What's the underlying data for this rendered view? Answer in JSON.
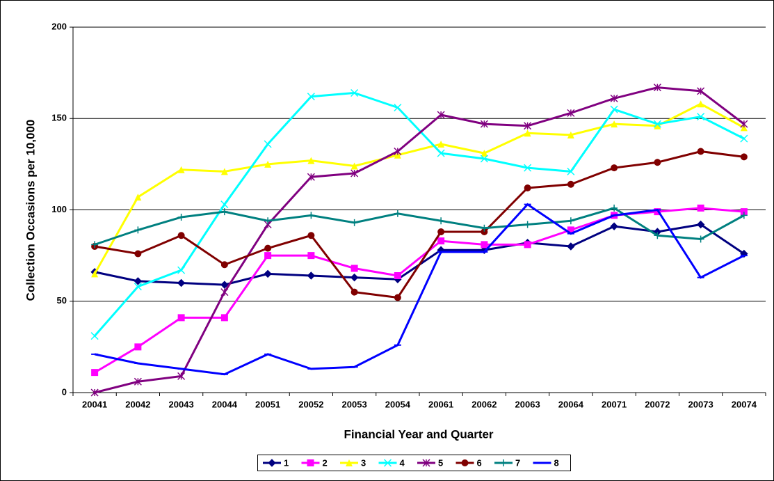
{
  "chart_data": {
    "type": "line",
    "x_label": "Financial Year and Quarter",
    "y_label": "Collection Occasions per 10,000",
    "categories": [
      "20041",
      "20042",
      "20043",
      "20044",
      "20051",
      "20052",
      "20053",
      "20054",
      "20061",
      "20062",
      "20063",
      "20064",
      "20071",
      "20072",
      "20073",
      "20074"
    ],
    "ylim": [
      0,
      200
    ],
    "yticks": [
      0,
      50,
      100,
      150,
      200
    ],
    "grid": true,
    "legend": "bottom",
    "series": [
      {
        "name": "1",
        "color": "#000080",
        "marker": "diamond",
        "values": [
          66,
          61,
          60,
          59,
          65,
          64,
          63,
          62,
          78,
          78,
          82,
          80,
          91,
          88,
          92,
          76
        ]
      },
      {
        "name": "2",
        "color": "#ff00ff",
        "marker": "square",
        "values": [
          11,
          25,
          41,
          41,
          75,
          75,
          68,
          64,
          83,
          81,
          81,
          89,
          97,
          99,
          101,
          99
        ]
      },
      {
        "name": "3",
        "color": "#ffff00",
        "marker": "triangle",
        "values": [
          65,
          107,
          122,
          121,
          125,
          127,
          124,
          130,
          136,
          131,
          142,
          141,
          147,
          146,
          158,
          145
        ]
      },
      {
        "name": "4",
        "color": "#00ffff",
        "marker": "x",
        "values": [
          31,
          58,
          67,
          103,
          136,
          162,
          164,
          156,
          131,
          128,
          123,
          121,
          155,
          147,
          151,
          139
        ]
      },
      {
        "name": "5",
        "color": "#800080",
        "marker": "star",
        "values": [
          0,
          6,
          9,
          55,
          92,
          118,
          120,
          132,
          152,
          147,
          146,
          153,
          161,
          167,
          165,
          147
        ]
      },
      {
        "name": "6",
        "color": "#800000",
        "marker": "circle",
        "values": [
          80,
          76,
          86,
          70,
          79,
          86,
          55,
          52,
          88,
          88,
          112,
          114,
          123,
          126,
          132,
          129
        ]
      },
      {
        "name": "7",
        "color": "#008080",
        "marker": "plus",
        "values": [
          81,
          89,
          96,
          99,
          94,
          97,
          93,
          98,
          94,
          90,
          92,
          94,
          101,
          86,
          84,
          97
        ]
      },
      {
        "name": "8",
        "color": "#0000ff",
        "marker": "dash",
        "values": [
          21,
          16,
          13,
          10,
          21,
          13,
          14,
          26,
          77,
          77,
          103,
          87,
          97,
          100,
          63,
          75
        ]
      }
    ]
  }
}
